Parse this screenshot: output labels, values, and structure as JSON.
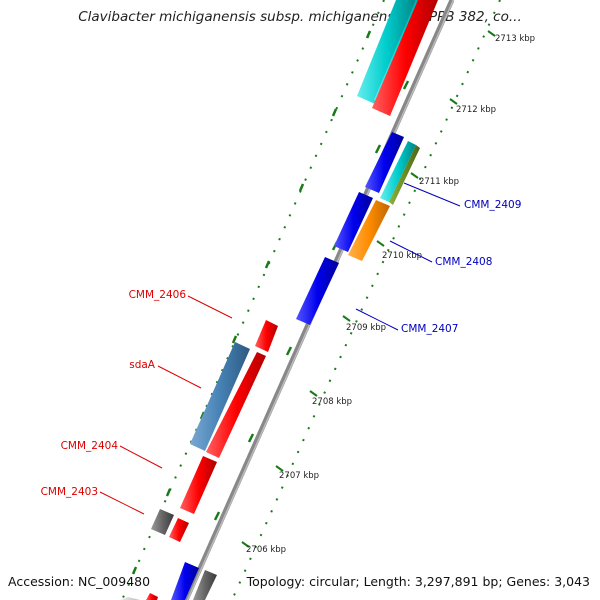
{
  "title": "Clavibacter michiganensis subsp. michiganensis NCPPB 382, co...",
  "footer": {
    "accession": "Accession: NC_009480",
    "summary": "Topology: circular; Length: 3,297,891 bp; Genes: 3,043"
  },
  "ticks": [
    "2706 kbp",
    "2707 kbp",
    "2708 kbp",
    "2709 kbp",
    "2710 kbp",
    "2711 kbp",
    "2712 kbp",
    "2713 kbp"
  ],
  "gene_labels_left": [
    "CMM_2406",
    "sdaA",
    "CMM_2404",
    "CMM_2403"
  ],
  "gene_labels_right": [
    "CMM_2409",
    "CMM_2408",
    "CMM_2407"
  ],
  "colors": {
    "forward_strand": "#0000ee",
    "reverse_strand": "#ff0000",
    "label_left": "#dd0000",
    "label_right": "#0000bb",
    "backbone": "#888888",
    "tick": "#1a7a1a",
    "steelblue": "#4682b4",
    "cyan": "#00cccc",
    "orange": "#ff8c00",
    "olive": "#6b8e23",
    "gray": "#666666"
  }
}
